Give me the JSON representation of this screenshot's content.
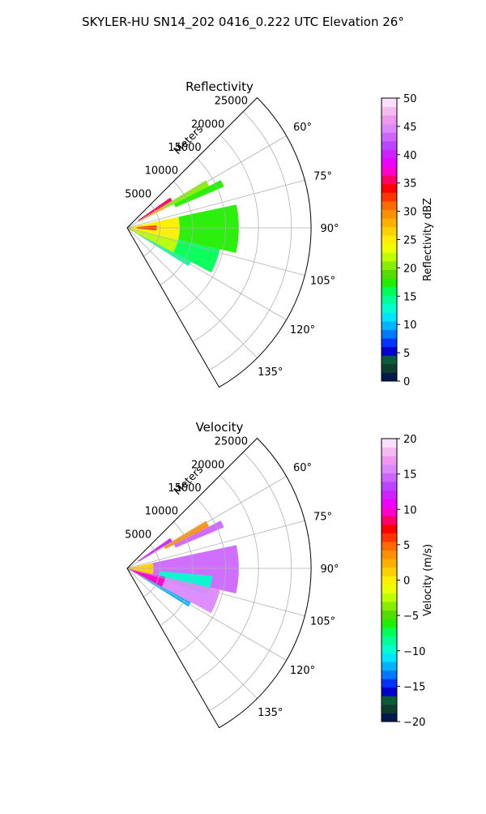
{
  "figure": {
    "suptitle": "SKYLER-HU  SN14_202  0416_0.222 UTC Elevation 26°"
  },
  "chart_data": [
    {
      "type": "heatmap",
      "title": "Reflectivity",
      "projection": "polar-sector",
      "theta_range_deg": [
        45,
        150
      ],
      "r_max": 28000,
      "r_label": "Meters",
      "r_ticks": [
        "5000",
        "10000",
        "15000",
        "20000",
        "25000"
      ],
      "r_tick_values": [
        5000,
        10000,
        15000,
        20000,
        25000
      ],
      "theta_ticks": [
        "60°",
        "75°",
        "90°",
        "105°",
        "120°",
        "135°"
      ],
      "theta_tick_values": [
        60,
        75,
        90,
        105,
        120,
        135
      ],
      "grid": true,
      "colorbar": {
        "label": "Reflectivity dBZ",
        "min": 0,
        "max": 50,
        "ticks": [
          "0",
          "5",
          "10",
          "15",
          "20",
          "25",
          "30",
          "35",
          "40",
          "45",
          "50"
        ],
        "tick_values": [
          0,
          5,
          10,
          15,
          20,
          25,
          30,
          35,
          40,
          45,
          50
        ],
        "colors": [
          "#001a4d",
          "#0f3d2e",
          "#0b5a3a",
          "#0000cc",
          "#0033ff",
          "#0077ff",
          "#00b3ff",
          "#00e5ff",
          "#00ffcc",
          "#00ff99",
          "#00ff55",
          "#22ee00",
          "#55dd00",
          "#88ee00",
          "#bbff00",
          "#eeff00",
          "#ffee00",
          "#ffd000",
          "#ffb000",
          "#ff9000",
          "#ff6a00",
          "#ff3300",
          "#ff0000",
          "#ff0066",
          "#ff00cc",
          "#ee00ff",
          "#cc22ff",
          "#bb44ff",
          "#cc66ff",
          "#dd88ff",
          "#ee99ee",
          "#f3bbf0",
          "#fbe0fb"
        ]
      },
      "sectors": [
        {
          "theta": [
            55,
            59
          ],
          "r": [
            2000,
            8000
          ],
          "value": 35
        },
        {
          "theta": [
            59,
            63
          ],
          "r": [
            2000,
            6500
          ],
          "value": 28
        },
        {
          "theta": [
            59,
            63
          ],
          "r": [
            6500,
            14000
          ],
          "value": 20
        },
        {
          "theta": [
            63,
            67
          ],
          "r": [
            8000,
            16000
          ],
          "value": 18
        },
        {
          "theta": [
            78,
            103
          ],
          "r": [
            0,
            8000
          ],
          "value": 25
        },
        {
          "theta": [
            78,
            103
          ],
          "r": [
            8000,
            17000
          ],
          "value": 18
        },
        {
          "theta": [
            85,
            95
          ],
          "r": [
            1500,
            4500
          ],
          "value": 32
        },
        {
          "theta": [
            103,
            118
          ],
          "r": [
            0,
            8000
          ],
          "value": 22
        },
        {
          "theta": [
            103,
            118
          ],
          "r": [
            8000,
            14500
          ],
          "value": 16
        },
        {
          "theta": [
            118,
            122
          ],
          "r": [
            2000,
            11000
          ],
          "value": 15
        }
      ]
    },
    {
      "type": "heatmap",
      "title": "Velocity",
      "projection": "polar-sector",
      "theta_range_deg": [
        45,
        150
      ],
      "r_max": 28000,
      "r_label": "Meters",
      "r_ticks": [
        "5000",
        "10000",
        "15000",
        "20000",
        "25000"
      ],
      "r_tick_values": [
        5000,
        10000,
        15000,
        20000,
        25000
      ],
      "theta_ticks": [
        "60°",
        "75°",
        "90°",
        "105°",
        "120°",
        "135°"
      ],
      "theta_tick_values": [
        60,
        75,
        90,
        105,
        120,
        135
      ],
      "grid": true,
      "colorbar": {
        "label": "Velocity (m/s)",
        "min": -20,
        "max": 20,
        "ticks": [
          "−20",
          "−15",
          "−10",
          "−5",
          "0",
          "5",
          "10",
          "15",
          "20"
        ],
        "tick_values": [
          -20,
          -15,
          -10,
          -5,
          0,
          5,
          10,
          15,
          20
        ],
        "colors": [
          "#001a4d",
          "#0f3d2e",
          "#0b5a3a",
          "#0000cc",
          "#0033ff",
          "#0077ff",
          "#00b3ff",
          "#00e5ff",
          "#00ffcc",
          "#00ff99",
          "#00ff55",
          "#22ee00",
          "#55dd00",
          "#88ee00",
          "#bbff00",
          "#eeff00",
          "#ffee00",
          "#ffd000",
          "#ffb000",
          "#ff9000",
          "#ff6a00",
          "#ff3300",
          "#ff0000",
          "#ff0066",
          "#ff00cc",
          "#ee00ff",
          "#cc22ff",
          "#bb44ff",
          "#cc66ff",
          "#dd88ff",
          "#ee99ee",
          "#f3bbf0",
          "#fbe0fb"
        ]
      },
      "sectors": [
        {
          "theta": [
            55,
            59
          ],
          "r": [
            2000,
            8000
          ],
          "value": 12
        },
        {
          "theta": [
            59,
            63
          ],
          "r": [
            6500,
            14000
          ],
          "value": 4
        },
        {
          "theta": [
            63,
            67
          ],
          "r": [
            8000,
            16000
          ],
          "value": 14
        },
        {
          "theta": [
            78,
            103
          ],
          "r": [
            0,
            4000
          ],
          "value": 1
        },
        {
          "theta": [
            78,
            103
          ],
          "r": [
            4000,
            17000
          ],
          "value": 15
        },
        {
          "theta": [
            95,
            108
          ],
          "r": [
            5000,
            13000
          ],
          "value": -10
        },
        {
          "theta": [
            103,
            118
          ],
          "r": [
            0,
            6000
          ],
          "value": 10
        },
        {
          "theta": [
            103,
            118
          ],
          "r": [
            6000,
            14500
          ],
          "value": 16
        },
        {
          "theta": [
            118,
            122
          ],
          "r": [
            2000,
            11000
          ],
          "value": -12
        }
      ]
    }
  ]
}
